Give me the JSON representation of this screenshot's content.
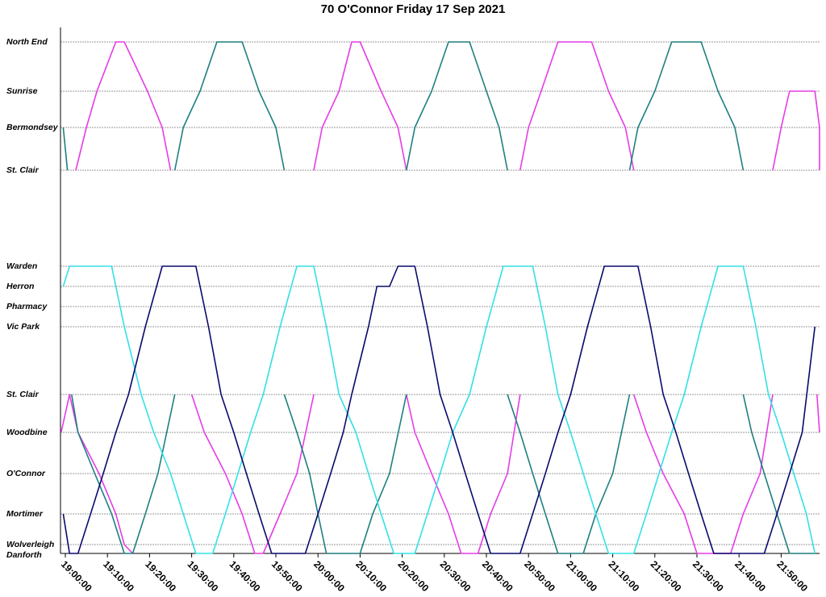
{
  "chart_data": {
    "type": "line",
    "title": "70 O'Connor Friday 17 Sep 2021",
    "x_ticks": [
      "19:00:00",
      "19:10:00",
      "19:20:00",
      "19:30:00",
      "19:40:00",
      "19:50:00",
      "20:00:00",
      "20:10:00",
      "20:20:00",
      "20:30:00",
      "20:40:00",
      "20:50:00",
      "21:00:00",
      "21:10:00",
      "21:20:00",
      "21:30:00",
      "21:40:00",
      "21:50:00"
    ],
    "xlim": [
      "19:00",
      "21:58"
    ],
    "stops": [
      {
        "name": "North End",
        "branch": "upper"
      },
      {
        "name": "Sunrise",
        "branch": "upper"
      },
      {
        "name": "Bermondsey",
        "branch": "upper"
      },
      {
        "name": "St. Clair",
        "branch": "upper"
      },
      {
        "name": "Warden",
        "branch": "lower"
      },
      {
        "name": "Herron",
        "branch": "lower"
      },
      {
        "name": "Pharmacy",
        "branch": "lower"
      },
      {
        "name": "Vic Park",
        "branch": "lower"
      },
      {
        "name": "St. Clair",
        "branch": "lower"
      },
      {
        "name": "Woodbine",
        "branch": "lower"
      },
      {
        "name": "O'Connor",
        "branch": "lower"
      },
      {
        "name": "Mortimer",
        "branch": "lower"
      },
      {
        "name": "Wolverleigh",
        "branch": "lower"
      },
      {
        "name": "Danforth",
        "branch": "lower"
      }
    ],
    "grid": true,
    "series_colors": {
      "magenta": "#e63ce6",
      "teal": "#1e7f7f",
      "cyan": "#33e0e6",
      "navy": "#0a0a6e"
    },
    "series": [
      {
        "color": "magenta",
        "points": [
          [
            "19:02:30",
            "St. Clair"
          ],
          [
            "19:05:00",
            "Bermondsey"
          ],
          [
            "19:07:30",
            "Sunrise"
          ],
          [
            "19:12:00",
            "North End"
          ],
          [
            "19:14:00",
            "North End"
          ],
          [
            "19:19:30",
            "Sunrise"
          ],
          [
            "19:23:00",
            "Bermondsey"
          ],
          [
            "19:25:00",
            "St. Clair"
          ]
        ]
      },
      {
        "color": "magenta",
        "points": [
          [
            "18:59:00",
            "Woodbine"
          ],
          [
            "19:01:00",
            "St. Clair"
          ],
          [
            "19:03:00",
            "Woodbine"
          ],
          [
            "19:08:00",
            "O'Connor"
          ],
          [
            "19:12:00",
            "Mortimer"
          ],
          [
            "19:14:00",
            "Wolverleigh"
          ],
          [
            "19:16:00",
            "Danforth"
          ]
        ]
      },
      {
        "color": "magenta",
        "points": [
          [
            "19:30:00",
            "St. Clair"
          ],
          [
            "19:33:00",
            "Woodbine"
          ],
          [
            "19:38:00",
            "O'Connor"
          ],
          [
            "19:42:00",
            "Mortimer"
          ],
          [
            "19:45:00",
            "Danforth"
          ],
          [
            "19:47:00",
            "Danforth"
          ],
          [
            "19:51:00",
            "Mortimer"
          ],
          [
            "19:55:00",
            "O'Connor"
          ],
          [
            "19:59:00",
            "St. Clair"
          ]
        ]
      },
      {
        "color": "magenta",
        "points": [
          [
            "19:59:00",
            "St. Clair"
          ],
          [
            "20:01:00",
            "Bermondsey"
          ],
          [
            "20:05:00",
            "Sunrise"
          ],
          [
            "20:08:00",
            "North End"
          ],
          [
            "20:10:00",
            "North End"
          ],
          [
            "20:15:00",
            "Sunrise"
          ],
          [
            "20:19:00",
            "Bermondsey"
          ],
          [
            "20:21:00",
            "St. Clair"
          ]
        ]
      },
      {
        "color": "magenta",
        "points": [
          [
            "20:21:00",
            "St. Clair"
          ],
          [
            "20:23:00",
            "Woodbine"
          ],
          [
            "20:27:00",
            "O'Connor"
          ],
          [
            "20:31:00",
            "Mortimer"
          ],
          [
            "20:34:00",
            "Danforth"
          ],
          [
            "20:38:00",
            "Danforth"
          ],
          [
            "20:41:00",
            "Mortimer"
          ],
          [
            "20:45:00",
            "O'Connor"
          ],
          [
            "20:48:00",
            "St. Clair"
          ]
        ]
      },
      {
        "color": "magenta",
        "points": [
          [
            "20:48:00",
            "St. Clair"
          ],
          [
            "20:50:00",
            "Bermondsey"
          ],
          [
            "20:53:00",
            "Sunrise"
          ],
          [
            "20:57:00",
            "North End"
          ],
          [
            "21:05:00",
            "North End"
          ],
          [
            "21:09:00",
            "Sunrise"
          ],
          [
            "21:13:00",
            "Bermondsey"
          ],
          [
            "21:15:00",
            "St. Clair"
          ]
        ]
      },
      {
        "color": "magenta",
        "points": [
          [
            "21:15:00",
            "St. Clair"
          ],
          [
            "21:18:00",
            "Woodbine"
          ],
          [
            "21:22:00",
            "O'Connor"
          ],
          [
            "21:27:00",
            "Mortimer"
          ],
          [
            "21:30:00",
            "Danforth"
          ],
          [
            "21:38:00",
            "Danforth"
          ],
          [
            "21:41:00",
            "Mortimer"
          ],
          [
            "21:45:00",
            "O'Connor"
          ],
          [
            "21:48:00",
            "St. Clair"
          ]
        ]
      },
      {
        "color": "magenta",
        "points": [
          [
            "21:48:00",
            "St. Clair"
          ],
          [
            "21:50:00",
            "Bermondsey"
          ],
          [
            "21:52:00",
            "Sunrise"
          ],
          [
            "21:58:00",
            "Sunrise"
          ],
          [
            "22:02:00",
            "Bermondsey"
          ],
          [
            "22:04:00",
            "St. Clair"
          ]
        ]
      },
      {
        "color": "magenta",
        "points": [
          [
            "21:58:30",
            "St. Clair"
          ],
          [
            "21:59:30",
            "Woodbine"
          ]
        ]
      },
      {
        "color": "teal",
        "points": [
          [
            "18:59:30",
            "Bermondsey"
          ],
          [
            "19:00:30",
            "St. Clair"
          ]
        ]
      },
      {
        "color": "teal",
        "points": [
          [
            "19:01:30",
            "St. Clair"
          ],
          [
            "19:03:00",
            "Woodbine"
          ],
          [
            "19:07:00",
            "O'Connor"
          ],
          [
            "19:11:00",
            "Mortimer"
          ],
          [
            "19:14:00",
            "Danforth"
          ],
          [
            "19:16:00",
            "Danforth"
          ],
          [
            "19:19:00",
            "Mortimer"
          ],
          [
            "19:22:00",
            "O'Connor"
          ],
          [
            "19:26:00",
            "St. Clair"
          ]
        ]
      },
      {
        "color": "teal",
        "points": [
          [
            "19:26:00",
            "St. Clair"
          ],
          [
            "19:28:00",
            "Bermondsey"
          ],
          [
            "19:32:00",
            "Sunrise"
          ],
          [
            "19:36:00",
            "North End"
          ],
          [
            "19:42:00",
            "North End"
          ],
          [
            "19:46:00",
            "Sunrise"
          ],
          [
            "19:50:00",
            "Bermondsey"
          ],
          [
            "19:52:00",
            "St. Clair"
          ]
        ]
      },
      {
        "color": "teal",
        "points": [
          [
            "19:52:00",
            "St. Clair"
          ],
          [
            "19:55:00",
            "Woodbine"
          ],
          [
            "19:58:00",
            "O'Connor"
          ],
          [
            "20:00:00",
            "Mortimer"
          ],
          [
            "20:02:00",
            "Danforth"
          ],
          [
            "20:10:00",
            "Danforth"
          ],
          [
            "20:13:00",
            "Mortimer"
          ],
          [
            "20:17:00",
            "O'Connor"
          ],
          [
            "20:21:00",
            "St. Clair"
          ]
        ]
      },
      {
        "color": "teal",
        "points": [
          [
            "20:21:00",
            "St. Clair"
          ],
          [
            "20:23:00",
            "Bermondsey"
          ],
          [
            "20:27:00",
            "Sunrise"
          ],
          [
            "20:31:00",
            "North End"
          ],
          [
            "20:36:00",
            "North End"
          ],
          [
            "20:40:00",
            "Sunrise"
          ],
          [
            "20:43:00",
            "Bermondsey"
          ],
          [
            "20:45:00",
            "St. Clair"
          ]
        ]
      },
      {
        "color": "teal",
        "points": [
          [
            "20:45:00",
            "St. Clair"
          ],
          [
            "20:48:00",
            "Woodbine"
          ],
          [
            "20:51:00",
            "O'Connor"
          ],
          [
            "20:54:00",
            "Mortimer"
          ],
          [
            "20:57:00",
            "Danforth"
          ],
          [
            "21:03:00",
            "Danforth"
          ],
          [
            "21:06:00",
            "Mortimer"
          ],
          [
            "21:10:00",
            "O'Connor"
          ],
          [
            "21:14:00",
            "St. Clair"
          ]
        ]
      },
      {
        "color": "teal",
        "points": [
          [
            "21:14:00",
            "St. Clair"
          ],
          [
            "21:16:00",
            "Bermondsey"
          ],
          [
            "21:20:00",
            "Sunrise"
          ],
          [
            "21:24:00",
            "North End"
          ],
          [
            "21:31:00",
            "North End"
          ],
          [
            "21:35:00",
            "Sunrise"
          ],
          [
            "21:39:00",
            "Bermondsey"
          ],
          [
            "21:41:00",
            "St. Clair"
          ]
        ]
      },
      {
        "color": "teal",
        "points": [
          [
            "21:41:00",
            "St. Clair"
          ],
          [
            "21:43:00",
            "Woodbine"
          ],
          [
            "21:46:00",
            "O'Connor"
          ],
          [
            "21:49:00",
            "Mortimer"
          ],
          [
            "21:52:00",
            "Danforth"
          ],
          [
            "21:58:00",
            "Danforth"
          ]
        ]
      },
      {
        "color": "cyan",
        "points": [
          [
            "18:59:30",
            "Herron"
          ],
          [
            "19:01:00",
            "Warden"
          ],
          [
            "19:11:00",
            "Warden"
          ],
          [
            "19:14:00",
            "Vic Park"
          ],
          [
            "19:18:00",
            "St. Clair"
          ],
          [
            "19:21:00",
            "Woodbine"
          ],
          [
            "19:25:00",
            "O'Connor"
          ],
          [
            "19:28:00",
            "Mortimer"
          ],
          [
            "19:31:00",
            "Danforth"
          ],
          [
            "19:35:00",
            "Danforth"
          ],
          [
            "19:38:00",
            "Mortimer"
          ],
          [
            "19:41:00",
            "O'Connor"
          ],
          [
            "19:44:00",
            "Woodbine"
          ],
          [
            "19:47:00",
            "St. Clair"
          ],
          [
            "19:51:00",
            "Vic Park"
          ],
          [
            "19:55:00",
            "Warden"
          ],
          [
            "19:59:00",
            "Warden"
          ],
          [
            "20:02:00",
            "Vic Park"
          ],
          [
            "20:05:00",
            "St. Clair"
          ],
          [
            "20:09:00",
            "Woodbine"
          ],
          [
            "20:12:00",
            "O'Connor"
          ],
          [
            "20:15:00",
            "Mortimer"
          ],
          [
            "20:18:00",
            "Danforth"
          ],
          [
            "20:23:00",
            "Danforth"
          ],
          [
            "20:26:00",
            "Mortimer"
          ],
          [
            "20:29:00",
            "O'Connor"
          ],
          [
            "20:32:00",
            "Woodbine"
          ],
          [
            "20:36:00",
            "St. Clair"
          ],
          [
            "20:40:00",
            "Vic Park"
          ],
          [
            "20:44:00",
            "Warden"
          ],
          [
            "20:51:00",
            "Warden"
          ],
          [
            "20:54:00",
            "Vic Park"
          ],
          [
            "20:57:00",
            "St. Clair"
          ],
          [
            "21:00:00",
            "Woodbine"
          ],
          [
            "21:03:00",
            "O'Connor"
          ],
          [
            "21:06:00",
            "Mortimer"
          ],
          [
            "21:09:00",
            "Danforth"
          ],
          [
            "21:15:00",
            "Danforth"
          ],
          [
            "21:18:00",
            "Mortimer"
          ],
          [
            "21:21:00",
            "O'Connor"
          ],
          [
            "21:24:00",
            "Woodbine"
          ],
          [
            "21:27:00",
            "St. Clair"
          ],
          [
            "21:31:00",
            "Vic Park"
          ],
          [
            "21:35:00",
            "Warden"
          ],
          [
            "21:41:00",
            "Warden"
          ],
          [
            "21:44:00",
            "Vic Park"
          ],
          [
            "21:47:00",
            "St. Clair"
          ],
          [
            "21:50:00",
            "Woodbine"
          ],
          [
            "21:53:00",
            "O'Connor"
          ],
          [
            "21:56:00",
            "Mortimer"
          ],
          [
            "21:58:00",
            "Danforth"
          ]
        ]
      },
      {
        "color": "navy",
        "points": [
          [
            "18:59:30",
            "Mortimer"
          ],
          [
            "19:01:00",
            "Danforth"
          ],
          [
            "19:03:00",
            "Danforth"
          ],
          [
            "19:06:00",
            "Mortimer"
          ],
          [
            "19:09:00",
            "O'Connor"
          ],
          [
            "19:12:00",
            "Woodbine"
          ],
          [
            "19:15:00",
            "St. Clair"
          ],
          [
            "19:19:00",
            "Vic Park"
          ],
          [
            "19:23:00",
            "Warden"
          ],
          [
            "19:31:00",
            "Warden"
          ],
          [
            "19:34:00",
            "Vic Park"
          ],
          [
            "19:37:00",
            "St. Clair"
          ],
          [
            "19:40:00",
            "Woodbine"
          ],
          [
            "19:43:00",
            "O'Connor"
          ],
          [
            "19:46:00",
            "Mortimer"
          ],
          [
            "19:49:00",
            "Danforth"
          ],
          [
            "19:57:00",
            "Danforth"
          ],
          [
            "20:00:00",
            "Mortimer"
          ],
          [
            "20:03:00",
            "O'Connor"
          ],
          [
            "20:06:00",
            "Woodbine"
          ],
          [
            "20:08:00",
            "St. Clair"
          ],
          [
            "20:12:00",
            "Vic Park"
          ],
          [
            "20:14:00",
            "Herron"
          ],
          [
            "20:17:00",
            "Herron"
          ],
          [
            "20:19:00",
            "Warden"
          ],
          [
            "20:23:00",
            "Warden"
          ],
          [
            "20:26:00",
            "Vic Park"
          ],
          [
            "20:29:00",
            "St. Clair"
          ],
          [
            "20:32:00",
            "Woodbine"
          ],
          [
            "20:35:00",
            "O'Connor"
          ],
          [
            "20:38:00",
            "Mortimer"
          ],
          [
            "20:41:00",
            "Danforth"
          ],
          [
            "20:48:00",
            "Danforth"
          ],
          [
            "20:51:00",
            "Mortimer"
          ],
          [
            "20:54:00",
            "O'Connor"
          ],
          [
            "20:57:00",
            "Woodbine"
          ],
          [
            "21:00:00",
            "St. Clair"
          ],
          [
            "21:04:00",
            "Vic Park"
          ],
          [
            "21:08:00",
            "Warden"
          ],
          [
            "21:16:00",
            "Warden"
          ],
          [
            "21:19:00",
            "Vic Park"
          ],
          [
            "21:22:00",
            "St. Clair"
          ],
          [
            "21:25:00",
            "Woodbine"
          ],
          [
            "21:28:00",
            "O'Connor"
          ],
          [
            "21:31:00",
            "Mortimer"
          ],
          [
            "21:34:00",
            "Danforth"
          ],
          [
            "21:46:00",
            "Danforth"
          ],
          [
            "21:49:00",
            "Mortimer"
          ],
          [
            "21:52:00",
            "O'Connor"
          ],
          [
            "21:55:00",
            "Woodbine"
          ],
          [
            "21:58:00",
            "Vic Park"
          ]
        ]
      }
    ]
  }
}
